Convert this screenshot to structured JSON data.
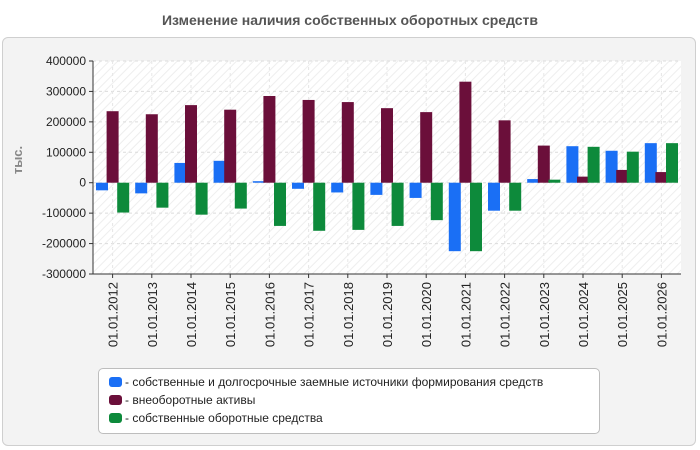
{
  "chart_data": {
    "type": "bar",
    "title": "Изменение наличия собственных оборотных средств",
    "ylabel": "тыс.",
    "xlabel": "",
    "ylim": [
      -300000,
      400000
    ],
    "yticks": [
      400000,
      300000,
      200000,
      100000,
      0,
      -100000,
      -200000,
      -300000
    ],
    "categories": [
      "01.01.2012",
      "01.01.2013",
      "01.01.2014",
      "01.01.2015",
      "01.01.2016",
      "01.01.2017",
      "01.01.2018",
      "01.01.2019",
      "01.01.2020",
      "01.01.2021",
      "01.01.2022",
      "01.01.2023",
      "01.01.2024",
      "01.01.2025",
      "01.01.2026"
    ],
    "series": [
      {
        "name": "собственные и долгосрочные заемные источники формирования средств",
        "color": "#1a6ff5",
        "values": [
          -25000,
          -35000,
          65000,
          72000,
          5000,
          -20000,
          -32000,
          -40000,
          -50000,
          -225000,
          -92000,
          12000,
          120000,
          105000,
          130000
        ]
      },
      {
        "name": "внеоборотные активы",
        "color": "#6b0f3a",
        "values": [
          235000,
          225000,
          255000,
          240000,
          285000,
          272000,
          265000,
          245000,
          232000,
          332000,
          205000,
          122000,
          20000,
          42000,
          35000
        ]
      },
      {
        "name": "собственные оборотные средства",
        "color": "#0d8a3b",
        "values": [
          -98000,
          -82000,
          -105000,
          -85000,
          -142000,
          -158000,
          -155000,
          -142000,
          -123000,
          -225000,
          -92000,
          10000,
          118000,
          102000,
          130000
        ]
      }
    ],
    "grid": true,
    "legend_position": "bottom"
  }
}
